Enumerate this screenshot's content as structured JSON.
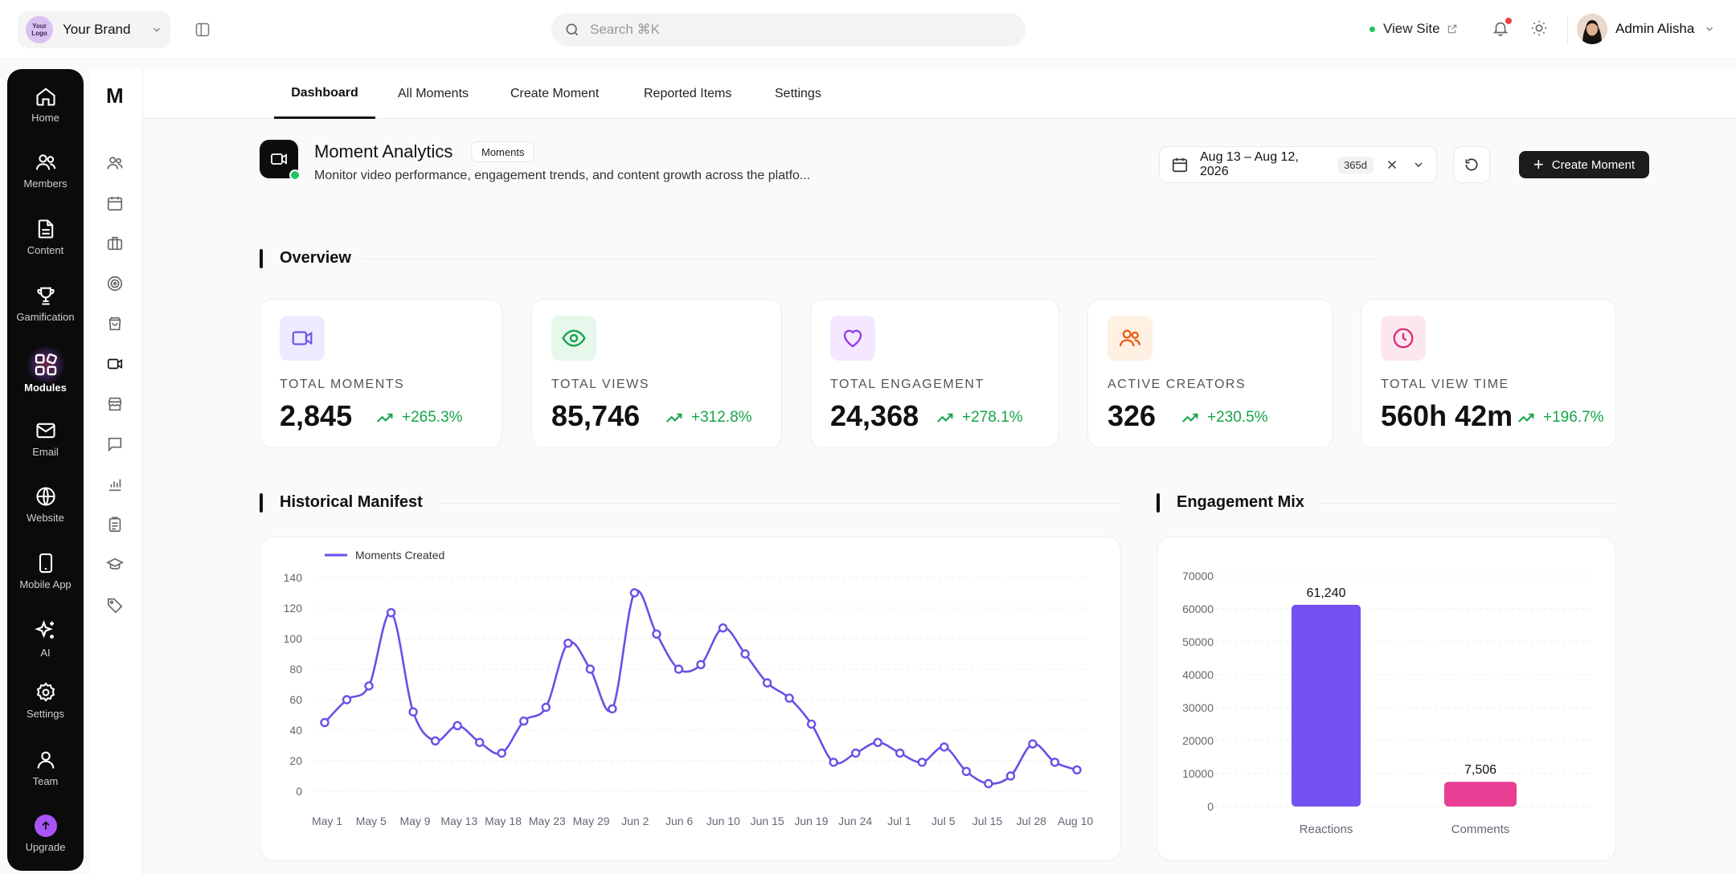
{
  "brand": {
    "logo_text": "Your Logo",
    "name": "Your Brand"
  },
  "search": {
    "placeholder": "Search ⌘K"
  },
  "topbar": {
    "view_site": "View Site",
    "user_name": "Admin Alisha"
  },
  "nav": {
    "items": [
      {
        "label": "Home",
        "icon": "home-icon"
      },
      {
        "label": "Members",
        "icon": "users-icon"
      },
      {
        "label": "Content",
        "icon": "document-icon"
      },
      {
        "label": "Gamification",
        "icon": "trophy-icon"
      },
      {
        "label": "Modules",
        "icon": "modules-icon",
        "active": true
      },
      {
        "label": "Email",
        "icon": "mail-icon"
      },
      {
        "label": "Website",
        "icon": "globe-icon"
      },
      {
        "label": "Mobile App",
        "icon": "phone-icon"
      },
      {
        "label": "AI",
        "icon": "sparkles-icon"
      },
      {
        "label": "Settings",
        "icon": "gear-icon"
      },
      {
        "label": "Team",
        "icon": "user-icon"
      },
      {
        "label": "Upgrade",
        "icon": "upgrade-icon"
      }
    ]
  },
  "rail": {
    "letter": "M"
  },
  "tabs": [
    {
      "label": "Dashboard",
      "active": true
    },
    {
      "label": "All Moments"
    },
    {
      "label": "Create Moment"
    },
    {
      "label": "Reported Items"
    },
    {
      "label": "Settings"
    }
  ],
  "header": {
    "title": "Moment Analytics",
    "badge": "Moments",
    "subtitle": "Monitor video performance, engagement trends, and content growth across the platfo...",
    "date_range": "Aug 13 – Aug 12, 2026",
    "days": "365d",
    "create_label": "Create Moment"
  },
  "overview": {
    "title": "Overview",
    "cards": [
      {
        "label": "TOTAL MOMENTS",
        "value": "2,845",
        "trend": "+265.3%",
        "icon": "video-icon",
        "color": "#6d5ae6",
        "bg": "#eeeaff"
      },
      {
        "label": "TOTAL VIEWS",
        "value": "85,746",
        "trend": "+312.8%",
        "icon": "eye-icon",
        "color": "#16a34a",
        "bg": "#e7f7ec"
      },
      {
        "label": "TOTAL ENGAGEMENT",
        "value": "24,368",
        "trend": "+278.1%",
        "icon": "heart-icon",
        "color": "#9333ea",
        "bg": "#f3e8ff"
      },
      {
        "label": "ACTIVE CREATORS",
        "value": "326",
        "trend": "+230.5%",
        "icon": "users-icon",
        "color": "#ea580c",
        "bg": "#fff0e4"
      },
      {
        "label": "TOTAL VIEW TIME",
        "value": "560h 42m",
        "trend": "+196.7%",
        "icon": "clock-icon",
        "color": "#db2777",
        "bg": "#fde7ef"
      }
    ]
  },
  "historical": {
    "title": "Historical Manifest"
  },
  "engagement": {
    "title": "Engagement Mix"
  },
  "chart_data": [
    {
      "type": "line",
      "series": [
        {
          "name": "Moments Created",
          "color": "#6d4ee6",
          "values": [
            45,
            60,
            69,
            117,
            52,
            33,
            43,
            32,
            25,
            46,
            55,
            97,
            80,
            54,
            130,
            103,
            80,
            83,
            107,
            90,
            71,
            61,
            44,
            19,
            25,
            32,
            25,
            19,
            29,
            13,
            5,
            10,
            31,
            19,
            14
          ]
        }
      ],
      "x_tick_labels": [
        "May 1",
        "May 5",
        "May 9",
        "May 13",
        "May 18",
        "May 23",
        "May 29",
        "Jun 2",
        "Jun 6",
        "Jun 10",
        "Jun 15",
        "Jun 19",
        "Jun 24",
        "Jul 1",
        "Jul 5",
        "Jul 15",
        "Jul 28",
        "Aug 10"
      ],
      "y_ticks": [
        0,
        20,
        40,
        60,
        80,
        100,
        120,
        140
      ],
      "ylim": [
        0,
        140
      ],
      "grid": true,
      "legend": "top-left"
    },
    {
      "type": "bar",
      "categories": [
        "Reactions",
        "Comments"
      ],
      "values": [
        61240,
        7506
      ],
      "value_labels": [
        "61,240",
        "7,506"
      ],
      "colors": [
        "#7251f0",
        "#e83e93"
      ],
      "y_ticks": [
        0,
        10000,
        20000,
        30000,
        40000,
        50000,
        60000,
        70000
      ],
      "ylim": [
        0,
        70000
      ],
      "grid": true
    }
  ]
}
